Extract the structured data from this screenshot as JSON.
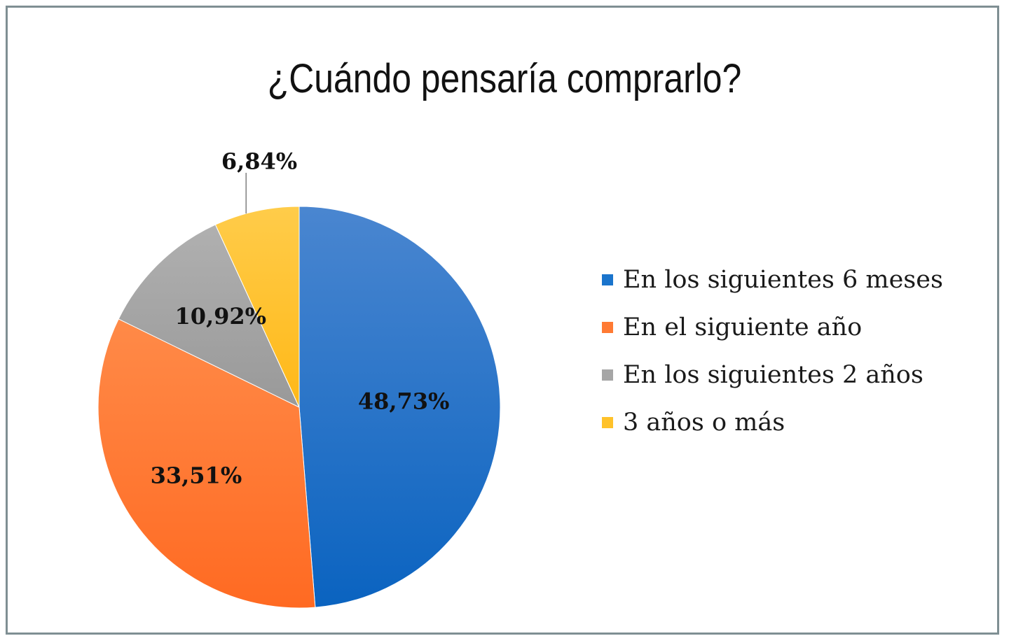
{
  "chart_data": {
    "type": "pie",
    "title": "¿Cuándo pensaría comprarlo?",
    "categories": [
      "En los siguientes 6 meses",
      "En el siguiente año",
      "En los siguientes 2 años",
      "3 años o más"
    ],
    "values": [
      48.73,
      33.51,
      10.92,
      6.84
    ],
    "data_labels": [
      "48,73%",
      "33,51%",
      "10,92%",
      "6,84%"
    ],
    "colors": [
      "#1a74cc",
      "#ff7a33",
      "#a6a6a6",
      "#ffc22a"
    ],
    "start_angle": "12 o'clock",
    "direction": "clockwise",
    "legend_position": "right"
  }
}
